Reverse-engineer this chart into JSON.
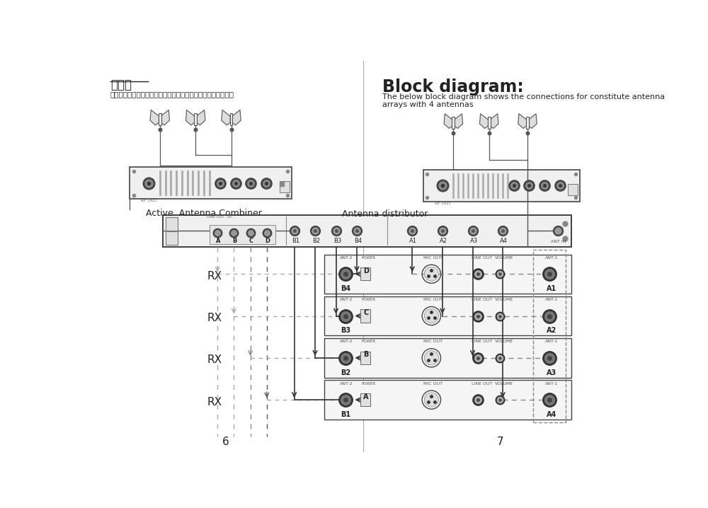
{
  "bg_color": "#ffffff",
  "left_title": "接线图",
  "left_subtitle": "下面的接线图显示连接四块天线，从而组成天线阵列的设备图：",
  "right_title": "Block diagram:",
  "right_subtitle1": "The below block diagram shows the connections for constitute antenna",
  "right_subtitle2": "arrays with 4 antennas",
  "left_page_num": "6",
  "right_page_num": "7",
  "combiner_label_left": "Active  Antenna Combiner",
  "distributor_label": "Antenna distributor",
  "colors": {
    "text": "#222222",
    "box_dark": "#444444",
    "box_light": "#999999",
    "line_solid": "#333333",
    "line_dashed": "#777777",
    "line_dashed_light": "#aaaaaa",
    "fill_box": "#f0f0f0",
    "fill_light": "#f8f8f8",
    "vent": "#bbbbbb",
    "port_outer": "#333333",
    "port_inner": "#888888"
  }
}
